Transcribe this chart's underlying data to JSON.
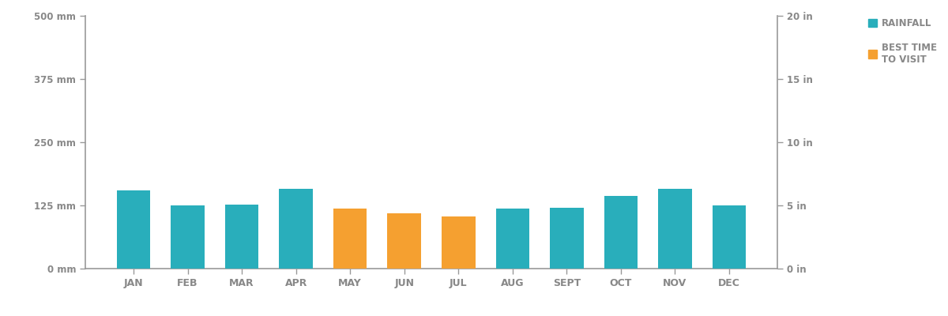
{
  "months": [
    "JAN",
    "FEB",
    "MAR",
    "APR",
    "MAY",
    "JUN",
    "JUL",
    "AUG",
    "SEPT",
    "OCT",
    "NOV",
    "DEC"
  ],
  "rainfall_mm": [
    155,
    125,
    127,
    158,
    118,
    110,
    103,
    118,
    120,
    143,
    158,
    125
  ],
  "best_time": [
    false,
    false,
    false,
    false,
    true,
    true,
    true,
    false,
    false,
    false,
    false,
    false
  ],
  "bar_color_rain": "#29AEBB",
  "bar_color_best": "#F5A030",
  "left_yticks_mm": [
    0,
    125,
    250,
    375,
    500
  ],
  "left_ytick_labels": [
    "0 mm",
    "125 mm",
    "250 mm",
    "375 mm",
    "500 mm"
  ],
  "right_ytick_labels": [
    "0 in",
    "5 in",
    "10 in",
    "15 in",
    "20 in"
  ],
  "ylim_mm": [
    0,
    500
  ],
  "legend_rainfall_label": "RAINFALL",
  "legend_best_label": "BEST TIME\nTO VISIT",
  "axis_color": "#999999",
  "tick_label_color": "#888888",
  "background_color": "#ffffff",
  "bar_width": 0.62
}
